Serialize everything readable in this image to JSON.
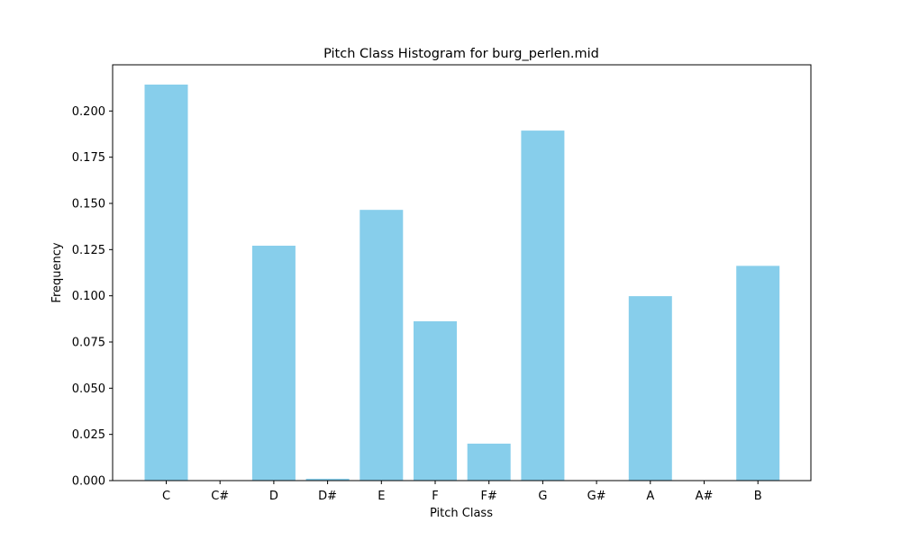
{
  "chart_data": {
    "type": "bar",
    "title": "Pitch Class Histogram for burg_perlen.mid",
    "xlabel": "Pitch Class",
    "ylabel": "Frequency",
    "categories": [
      "C",
      "C#",
      "D",
      "D#",
      "E",
      "F",
      "F#",
      "G",
      "G#",
      "A",
      "A#",
      "B"
    ],
    "values": [
      0.2143,
      0.0,
      0.1271,
      0.001,
      0.1465,
      0.0862,
      0.02,
      0.1894,
      0.0,
      0.0998,
      0.0,
      0.1162
    ],
    "ylim": [
      0,
      0.225
    ],
    "yticks": [
      0.0,
      0.025,
      0.05,
      0.075,
      0.1,
      0.125,
      0.15,
      0.175,
      0.2
    ],
    "ytick_labels": [
      "0.000",
      "0.025",
      "0.050",
      "0.075",
      "0.100",
      "0.125",
      "0.150",
      "0.175",
      "0.200"
    ],
    "bar_color": "#87CEEB",
    "grid": false,
    "legend": "none"
  }
}
